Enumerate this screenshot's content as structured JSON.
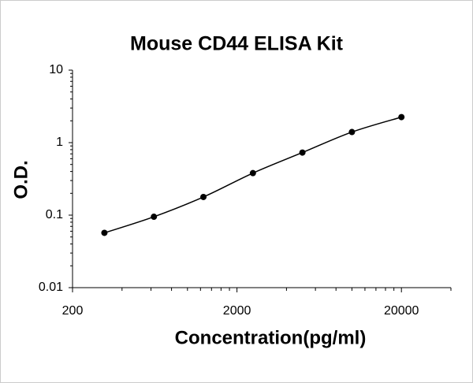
{
  "chart_data": {
    "type": "scatter",
    "title": "Mouse CD44 ELISA Kit",
    "x_label": "Concentration(pg/ml)",
    "y_label": "O.D.",
    "x_log": true,
    "y_log": true,
    "xlim": [
      200,
      40000
    ],
    "ylim": [
      0.01,
      10
    ],
    "xticks": [
      200,
      2000,
      20000
    ],
    "yticks": [
      0.01,
      0.1,
      1,
      10
    ],
    "series": [
      {
        "color": "#000000",
        "x": [
          312.5,
          625,
          1250,
          2500,
          5000,
          10000,
          20000
        ],
        "values": [
          0.057,
          0.095,
          0.178,
          0.38,
          0.73,
          1.4,
          2.25
        ]
      }
    ]
  }
}
